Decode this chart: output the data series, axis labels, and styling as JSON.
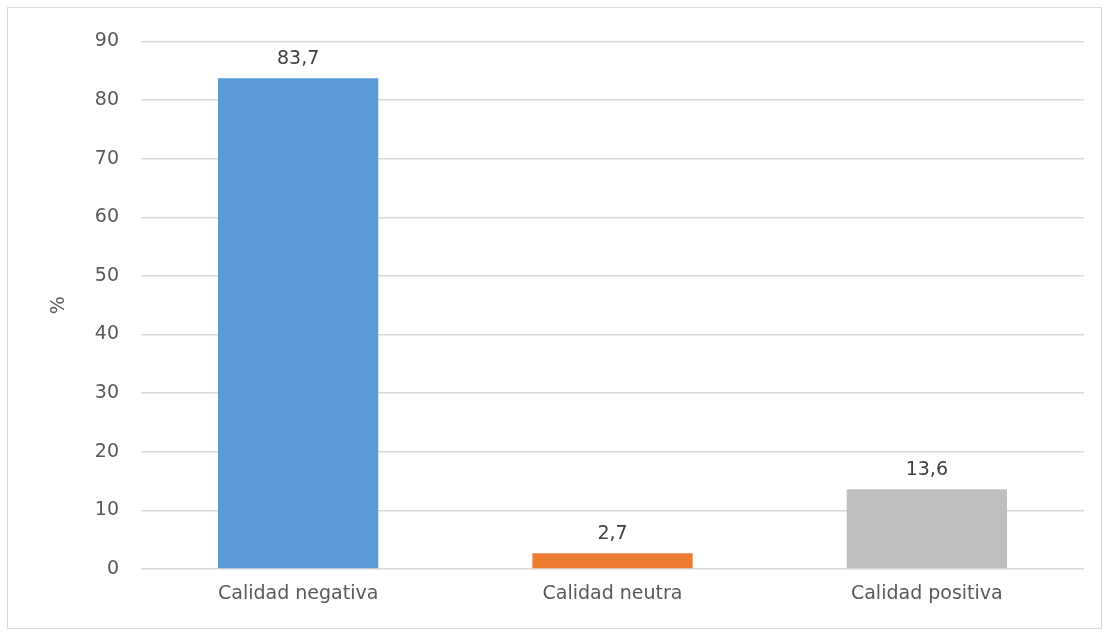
{
  "chart_data": {
    "type": "bar",
    "ylabel": "%",
    "categories": [
      "Calidad negativa",
      "Calidad neutra",
      "Calidad positiva"
    ],
    "values": [
      83.7,
      2.7,
      13.6
    ],
    "colors": [
      "#5b9bd5",
      "#ed7d31",
      "#bfbfbf"
    ],
    "value_labels": [
      "83,7",
      "2,7",
      "13,6"
    ],
    "ylim": [
      0,
      90
    ],
    "yticks": [
      0,
      10,
      20,
      30,
      40,
      50,
      60,
      70,
      80,
      90
    ],
    "grid": "y"
  }
}
